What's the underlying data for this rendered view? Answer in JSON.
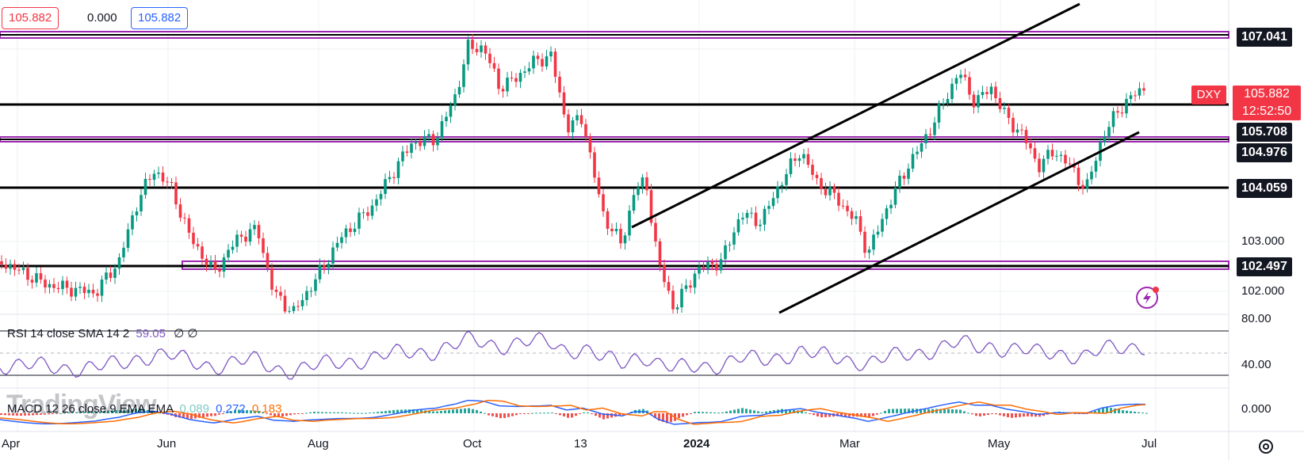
{
  "legend": {
    "open_value": "105.882",
    "change_value": "0.000",
    "close_value": "105.882"
  },
  "symbol": {
    "ticker": "DXY",
    "price": "105.882",
    "countdown": "12:52:50",
    "accent": "#f23645"
  },
  "price_scale": {
    "dark_labels": [
      "107.041",
      "105.708",
      "104.976",
      "104.059",
      "102.497"
    ],
    "plain_labels": [
      "103.000",
      "102.000"
    ]
  },
  "rsi": {
    "label": "RSI 14 close SMA 14 2",
    "value": "59.05",
    "extra": "∅ ∅",
    "scale": [
      "80.00",
      "40.00"
    ],
    "line_color": "#7e57c2"
  },
  "macd": {
    "label": "MACD 12 26 close 9 EMA EMA",
    "hist": "0.089",
    "macd": "0.272",
    "signal": "0.183",
    "scale": [
      "0.00",
      "0.000"
    ],
    "macd_color": "#2962ff",
    "signal_color": "#ff6d00"
  },
  "time_axis": [
    "Apr",
    "Jun",
    "Aug",
    "Oct",
    "13",
    "2024",
    "Mar",
    "May",
    "Jul"
  ],
  "watermark": "TradingView",
  "icons": {
    "flash": "lightning-icon",
    "settings": "gear-icon"
  },
  "colors": {
    "up": "#089981",
    "down": "#f23645",
    "zone": "#9c27b0",
    "line": "#000000"
  }
}
